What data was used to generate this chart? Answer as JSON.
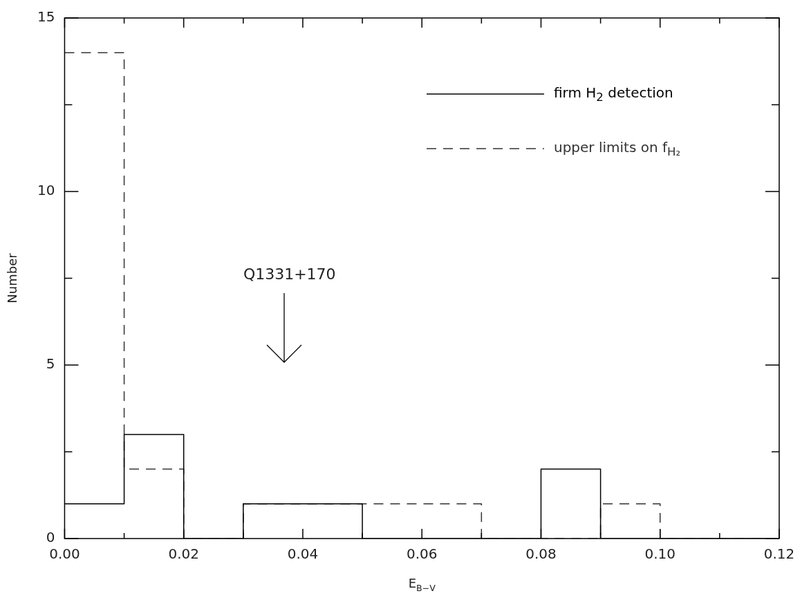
{
  "chart_data": {
    "type": "histogram",
    "xlabel": "E$_{B−V}$",
    "ylabel": "Number",
    "bins": [
      0,
      0.01,
      0.02,
      0.03,
      0.04,
      0.05,
      0.06,
      0.07,
      0.08,
      0.09,
      0.1,
      0.11,
      0.12
    ],
    "series": [
      {
        "name": "firm H$_{2}$ detection",
        "color": "#000000",
        "line_style": "solid",
        "values": [
          1,
          3,
          0,
          1,
          1,
          0,
          0,
          0,
          2,
          0,
          0,
          0
        ]
      },
      {
        "name": "upper limits on f$_{H₂}$",
        "color": "#333333",
        "line_style": "dashed",
        "values": [
          14,
          2,
          0,
          1,
          1,
          1,
          1,
          0,
          0,
          1,
          0,
          0
        ]
      }
    ],
    "xlim": [
      0,
      0.12
    ],
    "ylim": [
      0,
      15
    ],
    "xticks": [
      {
        "value": 0,
        "label": "0.00"
      },
      {
        "value": 0.01,
        "label": null
      },
      {
        "value": 0.02,
        "label": "0.02"
      },
      {
        "value": 0.03,
        "label": null
      },
      {
        "value": 0.04,
        "label": "0.04"
      },
      {
        "value": 0.05,
        "label": null
      },
      {
        "value": 0.06,
        "label": "0.06"
      },
      {
        "value": 0.07,
        "label": null
      },
      {
        "value": 0.08,
        "label": "0.08"
      },
      {
        "value": 0.09,
        "label": null
      },
      {
        "value": 0.1,
        "label": "0.10"
      },
      {
        "value": 0.11,
        "label": null
      },
      {
        "value": 0.12,
        "label": "0.12"
      }
    ],
    "yticks": [
      0,
      {
        "value": 2.5,
        "label": null
      },
      5,
      {
        "value": 7.5,
        "label": null
      },
      10,
      {
        "value": 12.5,
        "label": null
      },
      15
    ],
    "annotations": [
      "Q1331+170"
    ],
    "legend": "top right",
    "grid": false
  }
}
